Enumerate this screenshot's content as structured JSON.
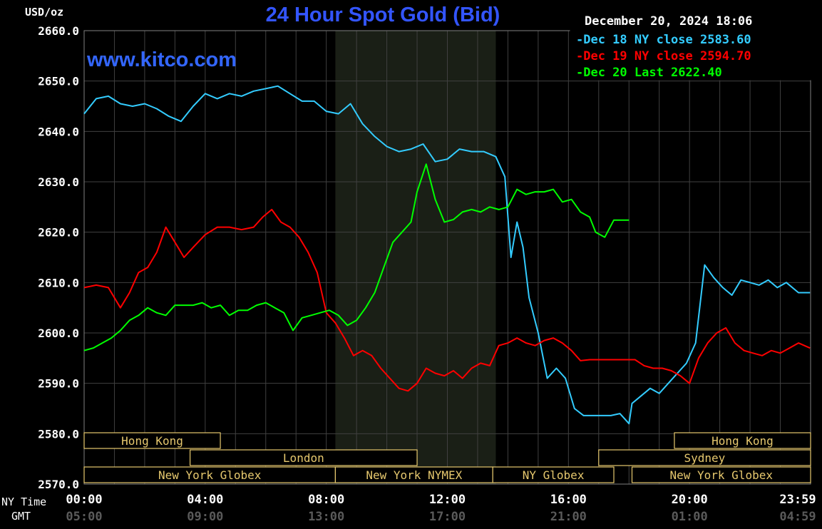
{
  "chart_data": {
    "type": "line",
    "title": "24 Hour Spot Gold (Bid)",
    "ylabel": "USD/oz",
    "watermark": "www.kitco.com",
    "timestamp": "December 20, 2024 18:06",
    "ylim": [
      2570,
      2660
    ],
    "xlim_hours": [
      0,
      24
    ],
    "yticks": [
      "2660.0",
      "2650.0",
      "2640.0",
      "2630.0",
      "2620.0",
      "2610.0",
      "2600.0",
      "2590.0",
      "2580.0",
      "2570.0"
    ],
    "xaxis": {
      "ny_label": "NY Time",
      "gmt_label": "GMT",
      "ny_ticks": [
        "00:00",
        "04:00",
        "08:00",
        "12:00",
        "16:00",
        "20:00",
        "23:59"
      ],
      "gmt_ticks": [
        "05:00",
        "09:00",
        "13:00",
        "17:00",
        "21:00",
        "01:00",
        "04:59"
      ]
    },
    "grid": true,
    "legend_position": "top-right",
    "colors": {
      "dec18": "#33ccff",
      "dec19": "#ff0000",
      "dec20": "#00ff00",
      "title": "#3355ff",
      "shade": "#1a1f16",
      "sessions": "#e6c86e",
      "grid": "#404040"
    },
    "series": [
      {
        "name": "Dec 18 NY close 2583.60",
        "color": "#33ccff",
        "x": [
          0,
          0.4,
          0.8,
          1.2,
          1.6,
          2.0,
          2.4,
          2.8,
          3.2,
          3.6,
          4.0,
          4.4,
          4.8,
          5.2,
          5.6,
          6.0,
          6.4,
          6.8,
          7.2,
          7.6,
          8.0,
          8.4,
          8.8,
          9.2,
          9.6,
          10.0,
          10.4,
          10.8,
          11.2,
          11.6,
          12.0,
          12.4,
          12.8,
          13.2,
          13.6,
          13.9,
          14.1,
          14.3,
          14.5,
          14.7,
          15.0,
          15.3,
          15.6,
          15.9,
          16.2,
          16.5,
          16.8,
          17.1,
          17.4,
          17.7,
          18.0,
          18.1,
          18.4,
          18.7,
          19.0,
          19.3,
          19.6,
          19.9,
          20.2,
          20.5,
          20.8,
          21.1,
          21.4,
          21.7,
          22.0,
          22.3,
          22.6,
          22.9,
          23.2,
          23.6,
          23.98
        ],
        "values": [
          2643.5,
          2646.5,
          2647,
          2645.5,
          2645,
          2645.5,
          2644.5,
          2643,
          2642,
          2645,
          2647.5,
          2646.5,
          2647.5,
          2647,
          2648,
          2648.5,
          2649,
          2647.5,
          2646,
          2646,
          2644,
          2643.5,
          2645.5,
          2641.5,
          2639,
          2637,
          2636,
          2636.5,
          2637.5,
          2634,
          2634.5,
          2636.5,
          2636,
          2636,
          2635,
          2631,
          2615,
          2622,
          2617,
          2607,
          2600,
          2591,
          2593,
          2591,
          2585,
          2583.6,
          2583.6,
          2583.6,
          2583.6,
          2584,
          2582,
          2586,
          2587.5,
          2589,
          2588,
          2590,
          2592,
          2594,
          2598,
          2613.5,
          2611,
          2609,
          2607.5,
          2610.5,
          2610,
          2609.5,
          2610.5,
          2609,
          2610,
          2608,
          2608
        ]
      },
      {
        "name": "Dec 19 NY close 2594.70",
        "color": "#ff0000",
        "x": [
          0,
          0.4,
          0.8,
          1.2,
          1.5,
          1.8,
          2.1,
          2.4,
          2.7,
          3.0,
          3.3,
          3.6,
          4.0,
          4.4,
          4.8,
          5.2,
          5.6,
          5.9,
          6.2,
          6.5,
          6.8,
          7.1,
          7.4,
          7.7,
          8.0,
          8.3,
          8.6,
          8.9,
          9.2,
          9.5,
          9.8,
          10.1,
          10.4,
          10.7,
          11.0,
          11.3,
          11.6,
          11.9,
          12.2,
          12.5,
          12.8,
          13.1,
          13.4,
          13.7,
          14.0,
          14.3,
          14.6,
          14.9,
          15.2,
          15.5,
          15.8,
          16.1,
          16.4,
          16.7,
          17.0,
          17.3,
          17.6,
          17.9,
          18.2,
          18.5,
          18.8,
          19.1,
          19.4,
          19.7,
          20.0,
          20.3,
          20.6,
          20.9,
          21.2,
          21.5,
          21.8,
          22.1,
          22.4,
          22.7,
          23.0,
          23.3,
          23.6,
          23.98
        ],
        "values": [
          2609,
          2609.5,
          2609,
          2605,
          2608,
          2612,
          2613,
          2616,
          2621,
          2618,
          2615,
          2617,
          2619.5,
          2621,
          2621,
          2620.5,
          2621,
          2623,
          2624.5,
          2622,
          2621,
          2619,
          2616,
          2612,
          2604,
          2602,
          2599,
          2595.5,
          2596.5,
          2595.5,
          2593,
          2591,
          2589,
          2588.5,
          2590,
          2593,
          2592,
          2591.5,
          2592.5,
          2591,
          2593,
          2594,
          2593.5,
          2597.5,
          2598,
          2599,
          2598,
          2597.5,
          2598.5,
          2599,
          2598,
          2596.5,
          2594.5,
          2594.7,
          2594.7,
          2594.7,
          2594.7,
          2594.7,
          2594.7,
          2593.5,
          2593,
          2593,
          2592.5,
          2591.5,
          2590,
          2595,
          2598,
          2600,
          2601,
          2598,
          2596.5,
          2596,
          2595.5,
          2596.5,
          2596,
          2597,
          2598,
          2597
        ]
      },
      {
        "name": "Dec 20 Last 2622.40",
        "color": "#00ff00",
        "x": [
          0,
          0.3,
          0.6,
          0.9,
          1.2,
          1.5,
          1.8,
          2.1,
          2.4,
          2.7,
          3.0,
          3.3,
          3.6,
          3.9,
          4.2,
          4.5,
          4.8,
          5.1,
          5.4,
          5.7,
          6.0,
          6.3,
          6.6,
          6.9,
          7.2,
          7.5,
          7.8,
          8.1,
          8.4,
          8.7,
          9.0,
          9.3,
          9.6,
          9.9,
          10.2,
          10.5,
          10.8,
          11.0,
          11.3,
          11.6,
          11.9,
          12.2,
          12.5,
          12.8,
          13.1,
          13.4,
          13.7,
          14.0,
          14.3,
          14.6,
          14.9,
          15.2,
          15.5,
          15.8,
          16.1,
          16.4,
          16.7,
          16.9,
          17.2,
          17.5,
          17.8,
          18.0
        ],
        "values": [
          2596.5,
          2597,
          2598,
          2599,
          2600.5,
          2602.5,
          2603.5,
          2605,
          2604,
          2603.5,
          2605.5,
          2605.5,
          2605.5,
          2606,
          2605,
          2605.5,
          2603.5,
          2604.5,
          2604.5,
          2605.5,
          2606,
          2605,
          2604,
          2600.5,
          2603,
          2603.5,
          2604,
          2604.5,
          2603.5,
          2601.5,
          2602.5,
          2605,
          2608,
          2613,
          2618,
          2620,
          2622,
          2628,
          2633.5,
          2626.5,
          2622,
          2622.5,
          2624,
          2624.5,
          2624,
          2625,
          2624.5,
          2625,
          2628.5,
          2627.5,
          2628,
          2628,
          2628.5,
          2626,
          2626.5,
          2624,
          2623,
          2620,
          2619,
          2622.4,
          2622.4,
          2622.4
        ]
      }
    ],
    "sessions": [
      {
        "name": "Hong Kong",
        "row": 0,
        "start": 0.0,
        "end": 4.5
      },
      {
        "name": "London",
        "row": 1,
        "start": 3.5,
        "end": 11.0
      },
      {
        "name": "New York Globex",
        "row": 2,
        "start": 0.0,
        "end": 8.3
      },
      {
        "name": "New York NYMEX",
        "row": 2,
        "start": 8.3,
        "end": 13.5
      },
      {
        "name": "NY Globex",
        "row": 2,
        "start": 13.5,
        "end": 17.5
      },
      {
        "name": "Hong Kong",
        "row": 0,
        "start": 19.5,
        "end": 24.0
      },
      {
        "name": "Sydney",
        "row": 1,
        "start": 17.0,
        "end": 24.0
      },
      {
        "name": "New York Globex",
        "row": 2,
        "start": 18.1,
        "end": 24.0
      }
    ],
    "shaded_region_hours": [
      8.3,
      13.6
    ]
  }
}
